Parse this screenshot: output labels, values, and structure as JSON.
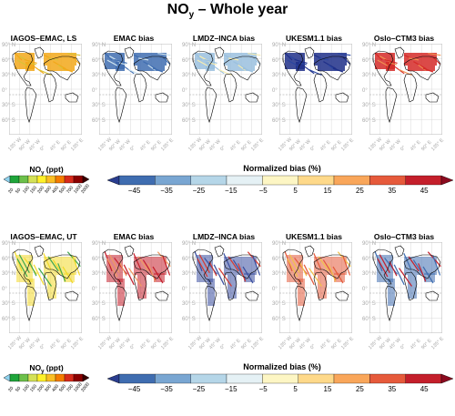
{
  "title": {
    "main": "NO",
    "sub": "y",
    "rest": " – Whole year"
  },
  "colors": {
    "bias": [
      "#2a3d8f",
      "#3f6db0",
      "#79a6d2",
      "#b5d6e8",
      "#e5f1f5",
      "#fdf6c4",
      "#fed98a",
      "#f9a65a",
      "#e65a3b",
      "#c41f2b",
      "#8b0a1f"
    ],
    "conc": [
      "#8fd3ef",
      "#1fa53a",
      "#6cc04a",
      "#d4e157",
      "#fff12a",
      "#fbbf24",
      "#f57c00",
      "#d72b1b",
      "#8b0000",
      "#3a0000"
    ]
  },
  "rows": [
    {
      "panels": [
        {
          "title": "IAGOS–EMAC, LS",
          "fill": "#f2a81a",
          "stroke": "#d9c237"
        },
        {
          "title": "EMAC bias",
          "fill": "#3f6db0",
          "stroke": "#cfe4f0"
        },
        {
          "title": "LMDZ–INCA bias",
          "fill": "#9ac0de",
          "stroke": "#f6ecb0"
        },
        {
          "title": "UKESM1.1 bias",
          "fill": "#1f2f88",
          "stroke": "#2b46a0"
        },
        {
          "title": "Oslo–CTM3 bias",
          "fill": "#d52a28",
          "stroke": "#f09050"
        }
      ],
      "conc_label": "NO",
      "conc_sub": "y",
      "conc_unit": " (ppt)",
      "bias_label": "Normalized bias (%)"
    },
    {
      "panels": [
        {
          "title": "IAGOS–EMAC, UT",
          "fill": "#f2d92a",
          "stroke": "#41a84b"
        },
        {
          "title": "EMAC bias",
          "fill": "#c41f2b",
          "stroke": "#f09a60"
        },
        {
          "title": "LMDZ–INCA bias",
          "fill": "#3a4fa0",
          "stroke": "#d63a30"
        },
        {
          "title": "UKESM1.1 bias",
          "fill": "#e35a3b",
          "stroke": "#f2c24a"
        },
        {
          "title": "Oslo–CTM3 bias",
          "fill": "#3f6db0",
          "stroke": "#c41f2b"
        }
      ],
      "conc_label": "NO",
      "conc_sub": "y",
      "conc_unit": " (ppt)",
      "bias_label": "Normalized bias (%)"
    }
  ],
  "lat_labels": [
    "90° N",
    "60° N",
    "30° N",
    "0°",
    "30° S",
    "60° S"
  ],
  "lon_labels": [
    "135° W",
    "90° W",
    "45° W",
    "0°",
    "45° E",
    "90° E",
    "135° E"
  ],
  "bias_ticks": [
    "−45",
    "−35",
    "−25",
    "−15",
    "−5",
    "5",
    "15",
    "25",
    "35",
    "45"
  ],
  "conc_ticks": [
    "20",
    "50",
    "100",
    "150",
    "200",
    "300",
    "400",
    "500",
    "700",
    "1000",
    "2000"
  ]
}
